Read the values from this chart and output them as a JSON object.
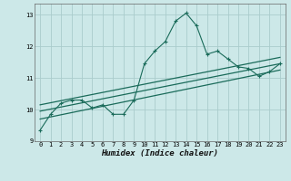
{
  "xlabel": "Humidex (Indice chaleur)",
  "background_color": "#cce8e8",
  "grid_color": "#aacccc",
  "line_color": "#1a6b5a",
  "xlim": [
    -0.5,
    23.5
  ],
  "ylim": [
    9.0,
    13.35
  ],
  "yticks": [
    9,
    10,
    11,
    12,
    13
  ],
  "xticks": [
    0,
    1,
    2,
    3,
    4,
    5,
    6,
    7,
    8,
    9,
    10,
    11,
    12,
    13,
    14,
    15,
    16,
    17,
    18,
    19,
    20,
    21,
    22,
    23
  ],
  "scatter_x": [
    0,
    1,
    2,
    3,
    4,
    5,
    6,
    7,
    8,
    9,
    10,
    11,
    12,
    13,
    14,
    15,
    16,
    17,
    18,
    19,
    20,
    21,
    22,
    23
  ],
  "scatter_y": [
    9.35,
    9.85,
    10.2,
    10.3,
    10.3,
    10.05,
    10.15,
    9.85,
    9.85,
    10.3,
    11.45,
    11.85,
    12.15,
    12.8,
    13.05,
    12.65,
    11.75,
    11.85,
    11.6,
    11.35,
    11.3,
    11.05,
    11.2,
    11.45
  ],
  "reg_line1_x": [
    0,
    23
  ],
  "reg_line1_y": [
    9.7,
    11.25
  ],
  "reg_line2_x": [
    0,
    23
  ],
  "reg_line2_y": [
    9.95,
    11.45
  ],
  "reg_line3_x": [
    0,
    23
  ],
  "reg_line3_y": [
    10.15,
    11.65
  ]
}
